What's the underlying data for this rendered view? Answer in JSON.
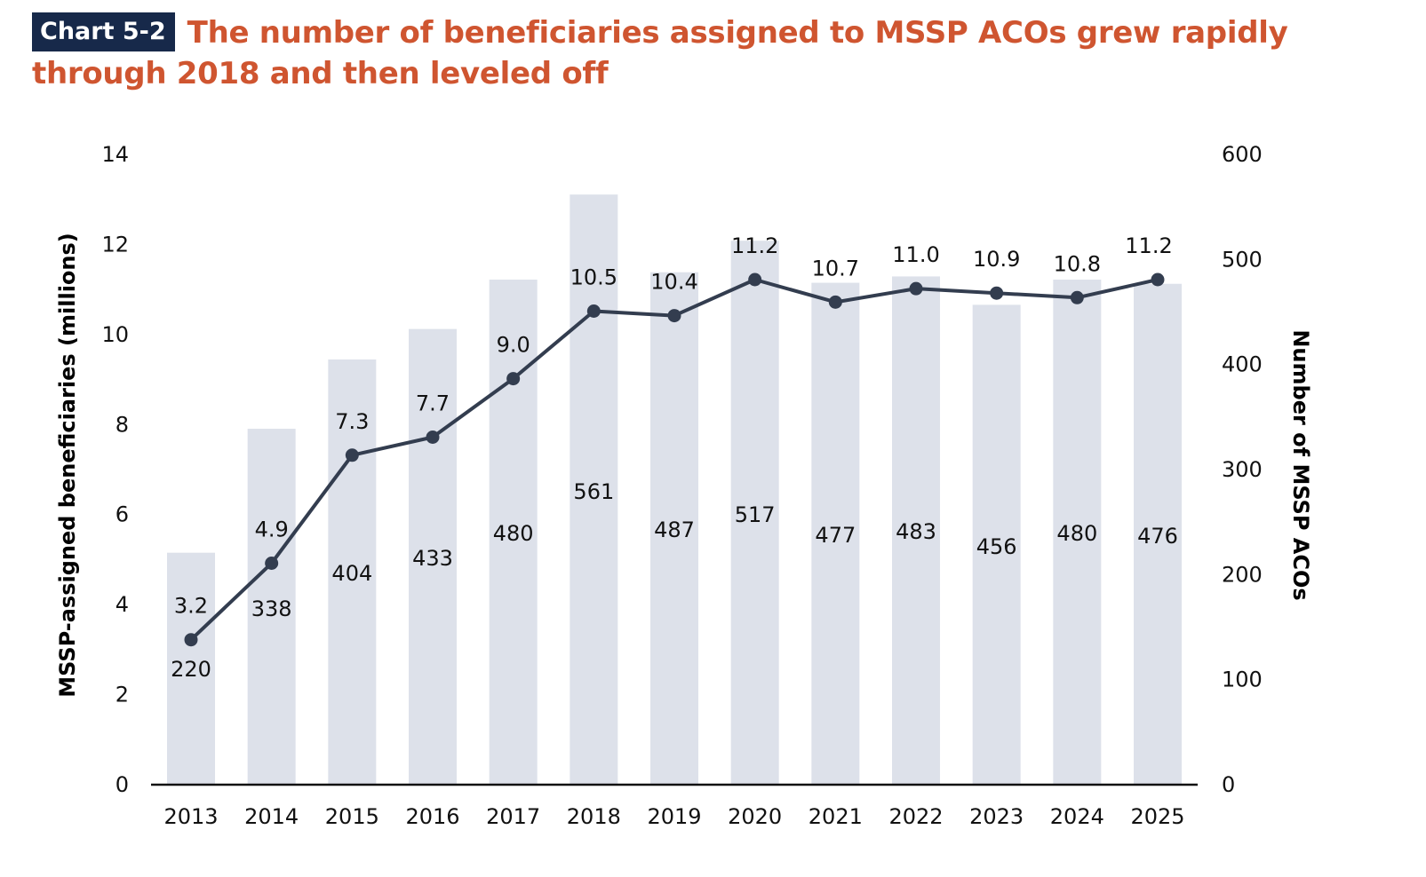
{
  "header": {
    "badge": "Chart 5-2",
    "title": "The number of beneficiaries assigned to MSSP ACOs grew rapidly through 2018 and then leveled off"
  },
  "colors": {
    "title": "#cf5530",
    "badge_bg": "#17294a",
    "bar": "#dde1ea",
    "line": "#333d4f",
    "axis": "#111111"
  },
  "chart_data": {
    "type": "bar+line",
    "title": "The number of beneficiaries assigned to MSSP ACOs grew rapidly through 2018 and then leveled off",
    "categories": [
      "2013",
      "2014",
      "2015",
      "2016",
      "2017",
      "2018",
      "2019",
      "2020",
      "2021",
      "2022",
      "2023",
      "2024",
      "2025"
    ],
    "series": [
      {
        "name": "Number of MSSP ACOs",
        "type": "bar",
        "axis": "right",
        "values": [
          220,
          338,
          404,
          433,
          480,
          561,
          487,
          517,
          477,
          483,
          456,
          480,
          476
        ],
        "labels": [
          "220",
          "338",
          "404",
          "433",
          "480",
          "561",
          "487",
          "517",
          "477",
          "483",
          "456",
          "480",
          "476"
        ]
      },
      {
        "name": "MSSP-assigned beneficiaries (millions)",
        "type": "line",
        "axis": "left",
        "values": [
          3.2,
          4.9,
          7.3,
          7.7,
          9.0,
          10.5,
          10.4,
          11.2,
          10.7,
          11.0,
          10.9,
          10.8,
          11.2
        ],
        "labels": [
          "3.2",
          "4.9",
          "7.3",
          "7.7",
          "9.0",
          "10.5",
          "10.4",
          "11.2",
          "10.7",
          "11.0",
          "10.9",
          "10.8",
          "11.2"
        ]
      }
    ],
    "ylabel": "MSSP-assigned beneficiaries (millions)",
    "ylabel_right": "Number of MSSP ACOs",
    "xlabel": "",
    "ylim": [
      0,
      14
    ],
    "ylim_right": [
      0,
      600
    ],
    "yticks": [
      "0",
      "2",
      "4",
      "6",
      "8",
      "10",
      "12",
      "14"
    ],
    "yticks_right": [
      "0",
      "100",
      "200",
      "300",
      "400",
      "500",
      "600"
    ],
    "grid": false,
    "legend": "none"
  }
}
